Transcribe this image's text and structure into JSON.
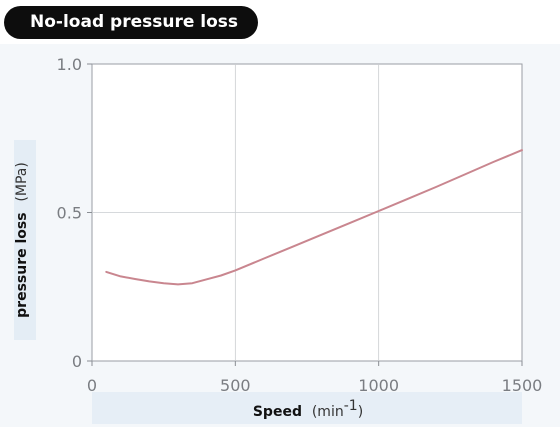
{
  "header": {
    "title": "No-load pressure loss"
  },
  "chart_data": {
    "type": "line",
    "title": "No-load pressure loss",
    "xlabel": "Speed",
    "xlabel_unit_base": "(min",
    "xlabel_unit_exp": "-1",
    "xlabel_unit_close": ")",
    "ylabel": "pressure loss",
    "ylabel_unit": "(MPa)",
    "xlim": [
      0,
      1500
    ],
    "ylim": [
      0,
      1.0
    ],
    "x_ticks": [
      0,
      500,
      1000,
      1500
    ],
    "y_ticks": [
      0,
      0.5,
      1.0
    ],
    "x_tick_labels": [
      "0",
      "500",
      "1000",
      "1500"
    ],
    "y_tick_labels": [
      "0",
      "0.5",
      "1.0"
    ],
    "grid": true,
    "series": [
      {
        "color": "#c9868f",
        "x": [
          50,
          100,
          150,
          200,
          250,
          300,
          350,
          400,
          450,
          500,
          600,
          700,
          800,
          900,
          1000,
          1100,
          1200,
          1300,
          1400,
          1500
        ],
        "y": [
          0.3,
          0.285,
          0.276,
          0.268,
          0.262,
          0.258,
          0.262,
          0.275,
          0.288,
          0.305,
          0.345,
          0.385,
          0.425,
          0.465,
          0.505,
          0.545,
          0.586,
          0.628,
          0.67,
          0.71
        ]
      }
    ]
  }
}
